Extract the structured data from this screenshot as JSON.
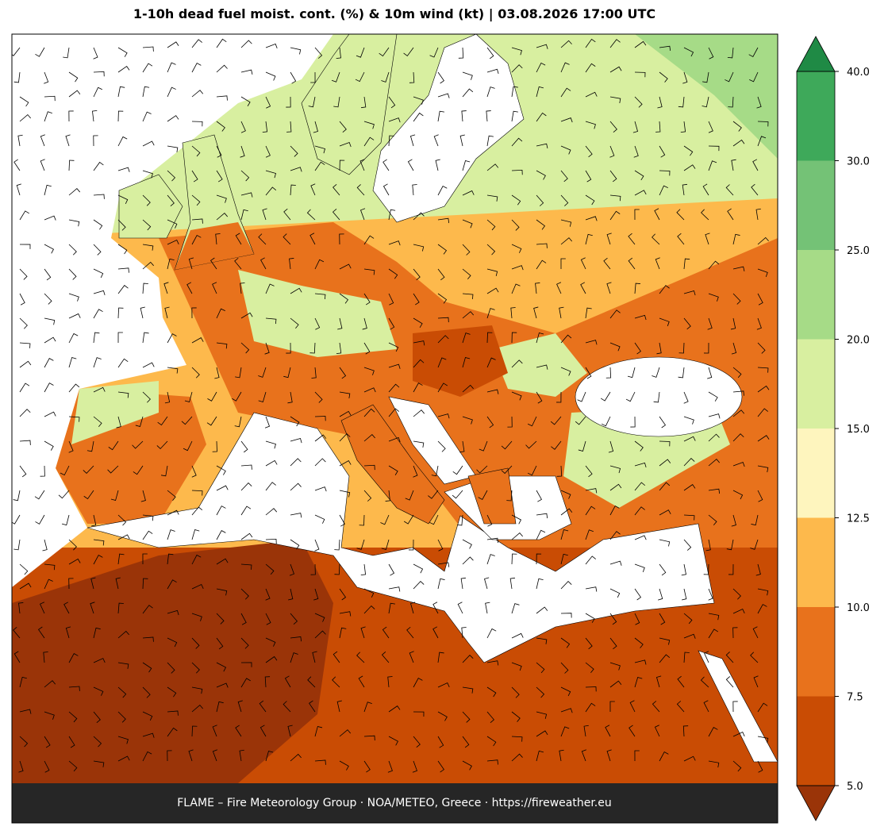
{
  "header": {
    "title": "1-10h dead fuel moist. cont. (%) & 10m wind (kt)  |  03.08.2026 17:00 UTC"
  },
  "colorbar": {
    "ticks": [
      {
        "value": 5,
        "label": "5.0"
      },
      {
        "value": 7.5,
        "label": "7.5"
      },
      {
        "value": 10,
        "label": "10.0"
      },
      {
        "value": 12.5,
        "label": "12.5"
      },
      {
        "value": 15,
        "label": "15.0"
      },
      {
        "value": 20,
        "label": "20.0"
      },
      {
        "value": 25,
        "label": "25.0"
      },
      {
        "value": 30,
        "label": "30.0"
      },
      {
        "value": 40,
        "label": "40.0"
      }
    ],
    "colors": [
      "#c94c04",
      "#e8721c",
      "#fdb94c",
      "#fef5be",
      "#d8efa0",
      "#a6db87",
      "#74c276",
      "#3ea95a"
    ],
    "under_color": "#9a3408",
    "over_color": "#1f8a45"
  },
  "footer": {
    "text": "FLAME – Fire Meteorology Group · NOA/METEO, Greece · https://fireweather.eu"
  }
}
